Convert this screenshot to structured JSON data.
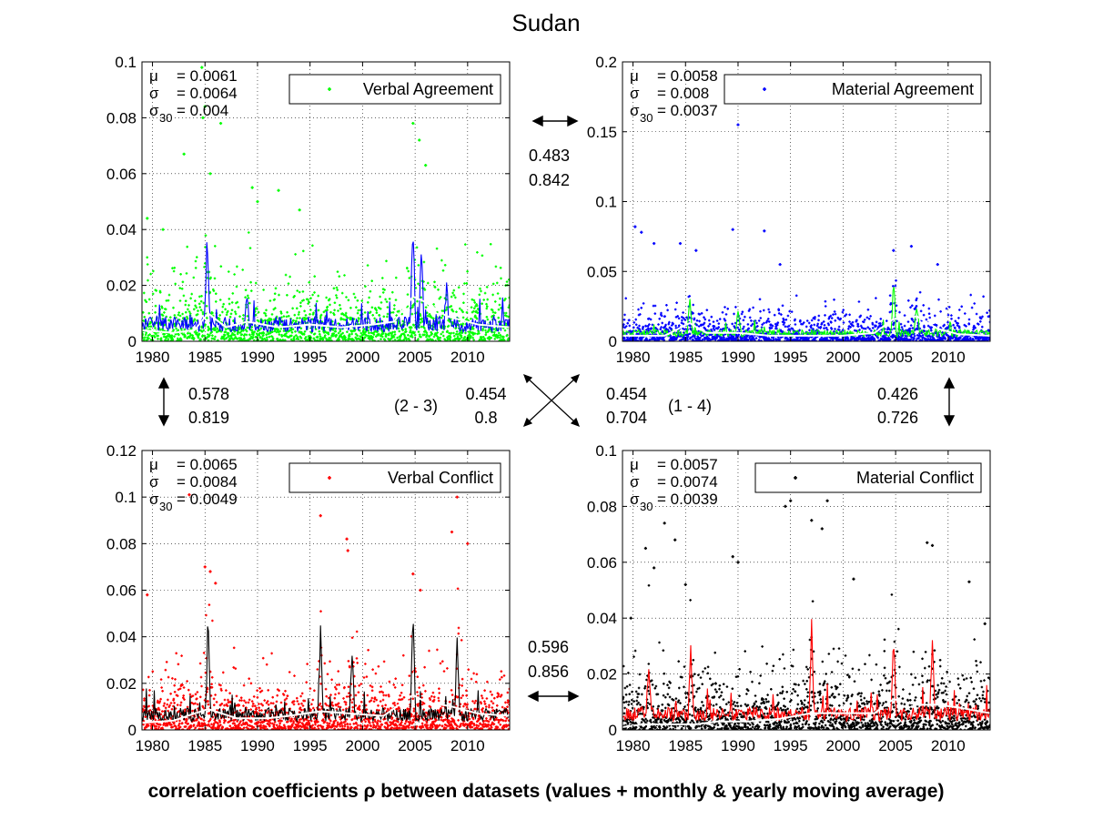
{
  "title": "Sudan",
  "footer": "correlation coefficients ρ between datasets (values + monthly & yearly moving average)",
  "chart_data": [
    {
      "type": "scatter",
      "legend": "Verbal Agreement",
      "legend_placement": "top-right",
      "stats": {
        "mu": "= 0.0061",
        "sigma": "= 0.0064",
        "sigma30": "= 0.004"
      },
      "point_color": "#00ff00",
      "monthly_color": "#0000ff",
      "yearly_color": "#ffffff",
      "xlim": [
        1979,
        2014
      ],
      "ylim": [
        0,
        0.1
      ],
      "xticks": [
        1980,
        1985,
        1990,
        1995,
        2000,
        2005,
        2010
      ],
      "yticks": [
        0,
        0.02,
        0.04,
        0.06,
        0.08,
        0.1
      ],
      "ytick_labels": [
        "0",
        "0.02",
        "0.04",
        "0.06",
        "0.08",
        "0.1"
      ],
      "grid": true,
      "mean": 0.0061,
      "sd": 0.0064,
      "peaks": [
        [
          1985.2,
          0.035
        ],
        [
          2004.8,
          0.04
        ],
        [
          2005.6,
          0.03
        ],
        [
          1989.0,
          0.012
        ],
        [
          2008.0,
          0.015
        ]
      ],
      "outliers": [
        [
          1979.5,
          0.044
        ],
        [
          1981,
          0.04
        ],
        [
          1983.0,
          0.067
        ],
        [
          1984.7,
          0.098
        ],
        [
          1984.8,
          0.08
        ],
        [
          1985,
          0.084
        ],
        [
          1986.5,
          0.078
        ],
        [
          1985.5,
          0.06
        ],
        [
          1989.5,
          0.055
        ],
        [
          1990,
          0.05
        ],
        [
          1992,
          0.054
        ],
        [
          2004.8,
          0.078
        ],
        [
          2005.4,
          0.072
        ],
        [
          2006,
          0.063
        ],
        [
          1994,
          0.047
        ]
      ],
      "yearly_avg": [
        [
          1979,
          0.004
        ],
        [
          1982,
          0.003
        ],
        [
          1984,
          0.004
        ],
        [
          1985.3,
          0.01
        ],
        [
          1987,
          0.005
        ],
        [
          1989,
          0.007
        ],
        [
          1992,
          0.005
        ],
        [
          1995,
          0.006
        ],
        [
          1998,
          0.005
        ],
        [
          2001,
          0.006
        ],
        [
          2003,
          0.007
        ],
        [
          2004.8,
          0.016
        ],
        [
          2006,
          0.014
        ],
        [
          2008,
          0.009
        ],
        [
          2011,
          0.006
        ],
        [
          2014,
          0.005
        ]
      ]
    },
    {
      "type": "scatter",
      "legend": "Material Agreement",
      "legend_placement": "top-right",
      "stats": {
        "mu": "= 0.0058",
        "sigma": "= 0.008",
        "sigma30": "= 0.0037"
      },
      "point_color": "#0000ff",
      "monthly_color": "#00ff00",
      "yearly_color": "#ffffff",
      "xlim": [
        1979,
        2014
      ],
      "ylim": [
        0,
        0.2
      ],
      "xticks": [
        1980,
        1985,
        1990,
        1995,
        2000,
        2005,
        2010
      ],
      "yticks": [
        0,
        0.05,
        0.1,
        0.15,
        0.2
      ],
      "ytick_labels": [
        "0",
        "0.05",
        "0.1",
        "0.15",
        "0.2"
      ],
      "grid": true,
      "mean": 0.0058,
      "sd": 0.008,
      "peaks": [
        [
          1985.4,
          0.03
        ],
        [
          2004.8,
          0.04
        ],
        [
          1990,
          0.02
        ],
        [
          2007,
          0.022
        ]
      ],
      "outliers": [
        [
          1980.2,
          0.082
        ],
        [
          1980.8,
          0.078
        ],
        [
          1982,
          0.07
        ],
        [
          1984.5,
          0.07
        ],
        [
          1986,
          0.065
        ],
        [
          1989.5,
          0.08
        ],
        [
          1990,
          0.155
        ],
        [
          1992.5,
          0.079
        ],
        [
          1994,
          0.055
        ],
        [
          2004.8,
          0.065
        ],
        [
          2006.5,
          0.068
        ],
        [
          2009,
          0.055
        ]
      ],
      "yearly_avg": [
        [
          1979,
          0.004
        ],
        [
          1983,
          0.004
        ],
        [
          1985.4,
          0.013
        ],
        [
          1987,
          0.006
        ],
        [
          1990,
          0.006
        ],
        [
          1993,
          0.004
        ],
        [
          1996,
          0.004
        ],
        [
          2000,
          0.004
        ],
        [
          2003,
          0.006
        ],
        [
          2004.8,
          0.016
        ],
        [
          2007,
          0.018
        ],
        [
          2009,
          0.009
        ],
        [
          2011,
          0.005
        ],
        [
          2014,
          0.004
        ]
      ]
    },
    {
      "type": "scatter",
      "legend": "Verbal Conflict",
      "legend_placement": "top-right",
      "stats": {
        "mu": "= 0.0065",
        "sigma": "= 0.0084",
        "sigma30": "= 0.0049"
      },
      "point_color": "#ff0000",
      "monthly_color": "#000000",
      "yearly_color": "#ffffff",
      "xlim": [
        1979,
        2014
      ],
      "ylim": [
        0,
        0.12
      ],
      "xticks": [
        1980,
        1985,
        1990,
        1995,
        2000,
        2005,
        2010
      ],
      "yticks": [
        0,
        0.02,
        0.04,
        0.06,
        0.08,
        0.1,
        0.12
      ],
      "ytick_labels": [
        "0",
        "0.02",
        "0.04",
        "0.06",
        "0.08",
        "0.1",
        "0.12"
      ],
      "grid": true,
      "mean": 0.0065,
      "sd": 0.0084,
      "peaks": [
        [
          1985.3,
          0.045
        ],
        [
          1996,
          0.04
        ],
        [
          2004.8,
          0.05
        ],
        [
          2009,
          0.035
        ],
        [
          1999,
          0.03
        ]
      ],
      "outliers": [
        [
          1979.5,
          0.058
        ],
        [
          1985,
          0.07
        ],
        [
          1985.5,
          0.068
        ],
        [
          1986,
          0.063
        ],
        [
          1996,
          0.092
        ],
        [
          1998.5,
          0.082
        ],
        [
          1998.6,
          0.077
        ],
        [
          2004.8,
          0.067
        ],
        [
          2008.5,
          0.085
        ],
        [
          2009,
          0.1
        ],
        [
          2010,
          0.08
        ],
        [
          1983.5,
          0.101
        ],
        [
          2005.5,
          0.06
        ]
      ],
      "yearly_avg": [
        [
          1979,
          0.003
        ],
        [
          1982,
          0.004
        ],
        [
          1985.3,
          0.009
        ],
        [
          1988,
          0.005
        ],
        [
          1991,
          0.005
        ],
        [
          1993,
          0.006
        ],
        [
          1996,
          0.008
        ],
        [
          1999,
          0.007
        ],
        [
          2002,
          0.006
        ],
        [
          2004.8,
          0.015
        ],
        [
          2006,
          0.012
        ],
        [
          2008.5,
          0.01
        ],
        [
          2011,
          0.007
        ],
        [
          2014,
          0.006
        ]
      ]
    },
    {
      "type": "scatter",
      "legend": "Material Conflict",
      "legend_placement": "top-right",
      "stats": {
        "mu": "= 0.0057",
        "sigma": "= 0.0074",
        "sigma30": "= 0.0039"
      },
      "point_color": "#000000",
      "monthly_color": "#ff0000",
      "yearly_color": "#ffffff",
      "xlim": [
        1979,
        2014
      ],
      "ylim": [
        0,
        0.1
      ],
      "xticks": [
        1980,
        1985,
        1990,
        1995,
        2000,
        2005,
        2010
      ],
      "yticks": [
        0,
        0.02,
        0.04,
        0.06,
        0.08,
        0.1
      ],
      "ytick_labels": [
        "0",
        "0.02",
        "0.04",
        "0.06",
        "0.08",
        "0.1"
      ],
      "grid": true,
      "mean": 0.0057,
      "sd": 0.0074,
      "peaks": [
        [
          1981.5,
          0.02
        ],
        [
          1985.5,
          0.025
        ],
        [
          1997,
          0.035
        ],
        [
          2004.8,
          0.03
        ],
        [
          2008.5,
          0.03
        ]
      ],
      "outliers": [
        [
          1979.8,
          0.04
        ],
        [
          1981.2,
          0.065
        ],
        [
          1982,
          0.058
        ],
        [
          1983,
          0.074
        ],
        [
          1984,
          0.068
        ],
        [
          1985,
          0.052
        ],
        [
          1989.5,
          0.062
        ],
        [
          1990,
          0.06
        ],
        [
          1994.5,
          0.08
        ],
        [
          1995,
          0.082
        ],
        [
          1997,
          0.075
        ],
        [
          1998,
          0.072
        ],
        [
          1998.5,
          0.082
        ],
        [
          2001,
          0.054
        ],
        [
          2008,
          0.067
        ],
        [
          2008.5,
          0.066
        ],
        [
          2012,
          0.053
        ],
        [
          2013.5,
          0.038
        ]
      ],
      "yearly_avg": [
        [
          1979,
          0.001
        ],
        [
          1981,
          0.002
        ],
        [
          1983,
          0.002
        ],
        [
          1986,
          0.002
        ],
        [
          1988,
          0.003
        ],
        [
          1991,
          0.003
        ],
        [
          1994,
          0.004
        ],
        [
          1997,
          0.006
        ],
        [
          2000,
          0.006
        ],
        [
          2003,
          0.006
        ],
        [
          2004.8,
          0.011
        ],
        [
          2007,
          0.009
        ],
        [
          2009,
          0.009
        ],
        [
          2011,
          0.008
        ],
        [
          2014,
          0.006
        ]
      ]
    }
  ],
  "correlations": {
    "c12": {
      "a": "0.483",
      "b": "0.842"
    },
    "c13": {
      "a": "0.578",
      "b": "0.819"
    },
    "c23": {
      "label": "(2 - 3)",
      "a": "0.454",
      "b": "0.8"
    },
    "c14": {
      "label": "(1 - 4)",
      "a": "0.454",
      "b": "0.704"
    },
    "c24": {
      "a": "0.426",
      "b": "0.726"
    },
    "c34": {
      "a": "0.596",
      "b": "0.856"
    }
  }
}
